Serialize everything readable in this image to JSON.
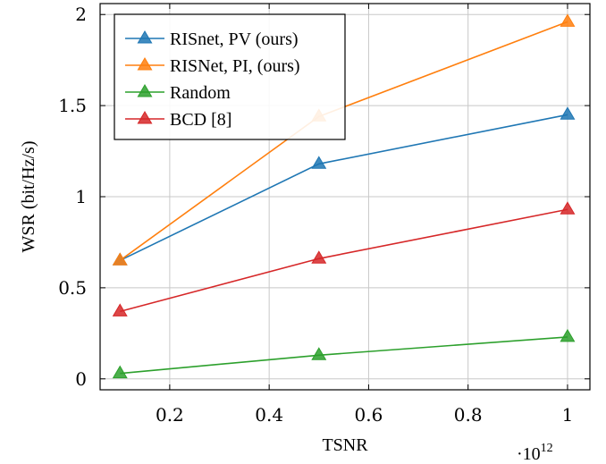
{
  "chart_data": {
    "type": "line",
    "title": "",
    "xlabel": "TSNR",
    "ylabel": "WSR (bit/Hz/s)",
    "x_multiplier_label": "·10",
    "x_multiplier_exp": "12",
    "xlim": [
      0.06,
      1.045
    ],
    "ylim": [
      -0.06,
      2.06
    ],
    "xticks": [
      0.2,
      0.4,
      0.6,
      0.8,
      1.0
    ],
    "xtick_labels": [
      "0.2",
      "0.4",
      "0.6",
      "0.8",
      "1"
    ],
    "yticks": [
      0,
      0.5,
      1.0,
      1.5,
      2.0
    ],
    "ytick_labels": [
      "0",
      "0.5",
      "1",
      "1.5",
      "2"
    ],
    "grid": true,
    "legend_position": "top-left",
    "x": [
      0.1,
      0.5,
      1.0
    ],
    "series": [
      {
        "name": "RISnet, PV (ours)",
        "color": "#1f77b4",
        "marker": "triangle",
        "values": [
          0.65,
          1.18,
          1.45
        ]
      },
      {
        "name": "RISNet, PI, (ours)",
        "color": "#ff7f0e",
        "marker": "triangle",
        "values": [
          0.65,
          1.44,
          1.96
        ]
      },
      {
        "name": "Random",
        "color": "#2ca02c",
        "marker": "triangle",
        "values": [
          0.03,
          0.13,
          0.23
        ]
      },
      {
        "name": "BCD [8]",
        "color": "#d62728",
        "marker": "triangle",
        "values": [
          0.37,
          0.66,
          0.93
        ]
      }
    ]
  }
}
